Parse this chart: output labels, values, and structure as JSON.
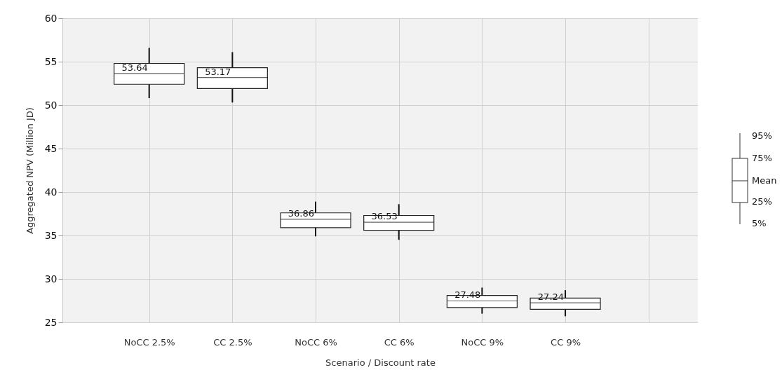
{
  "chart_data": {
    "type": "box",
    "xlabel": "Scenario / Discount rate",
    "ylabel": "Aggregated NPV (Million JD)",
    "categories": [
      "NoCC  2.5%",
      "CC  2.5%",
      "NoCC  6%",
      "CC  6%",
      "NoCC  9%",
      "CC  9%"
    ],
    "boxes": [
      {
        "low": 50.8,
        "q1": 52.4,
        "median": 53.64,
        "q3": 54.8,
        "high": 56.6
      },
      {
        "low": 50.3,
        "q1": 51.9,
        "median": 53.17,
        "q3": 54.3,
        "high": 56.1
      },
      {
        "low": 34.9,
        "q1": 35.9,
        "median": 36.86,
        "q3": 37.6,
        "high": 38.9
      },
      {
        "low": 34.5,
        "q1": 35.6,
        "median": 36.53,
        "q3": 37.3,
        "high": 38.6
      },
      {
        "low": 26.0,
        "q1": 26.7,
        "median": 27.48,
        "q3": 28.1,
        "high": 29.0
      },
      {
        "low": 25.7,
        "q1": 26.5,
        "median": 27.24,
        "q3": 27.8,
        "high": 28.7
      }
    ],
    "ylim": [
      25,
      60
    ],
    "yticks": [
      25,
      30,
      35,
      40,
      45,
      50,
      55,
      60
    ],
    "grid": true,
    "annotations": [
      "95%",
      "75%",
      "Mean",
      "25%",
      "5%",
      {
        "text": "53.64",
        "x": "NoCC  2.5%",
        "y": 53.64
      },
      {
        "text": "53.17",
        "x": "CC  2.5%",
        "y": 53.17
      },
      {
        "text": "36.86",
        "x": "NoCC  6%",
        "y": 36.86
      },
      {
        "text": "36.53",
        "x": "CC  6%",
        "y": 36.53
      },
      {
        "text": "27.48",
        "x": "NoCC  9%",
        "y": 27.48
      },
      {
        "text": "27.24",
        "x": "CC  9%",
        "y": 27.24
      }
    ]
  }
}
